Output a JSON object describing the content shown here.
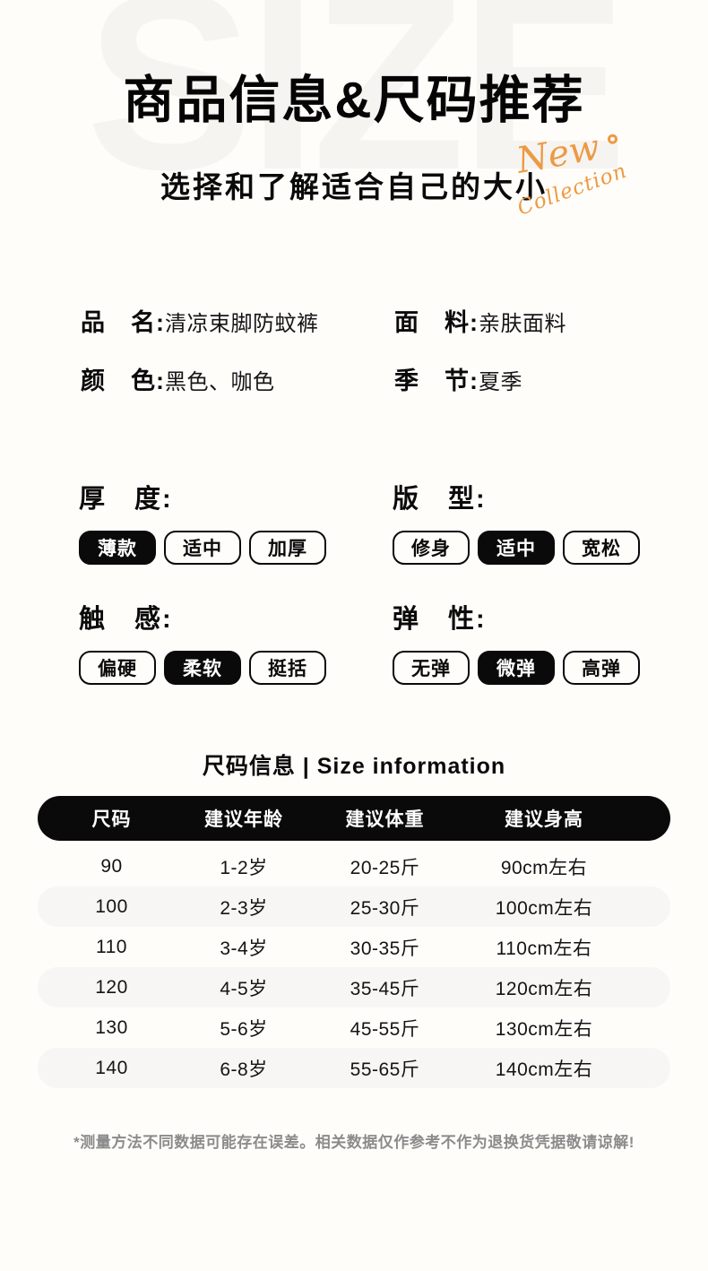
{
  "colors": {
    "accent_orange": "#EC9A43",
    "pill_black": "#0a0a0a",
    "row_stripe": "#f7f6f4",
    "watermark_gray": "#f6f4f1"
  },
  "header": {
    "watermark": "SIZE",
    "title": "商品信息&尺码推荐",
    "subtitle": "选择和了解适合自己的大小",
    "badge_line1": "New",
    "badge_line2": "Collection"
  },
  "product_info": {
    "fields": [
      {
        "label": "品　名:",
        "value": "清凉束脚防蚊裤"
      },
      {
        "label": "面　料:",
        "value": "亲肤面料"
      },
      {
        "label": "颜　色:",
        "value": "黑色、咖色"
      },
      {
        "label": "季　节:",
        "value": "夏季"
      }
    ]
  },
  "attributes": [
    {
      "label": "厚　度:",
      "options": [
        {
          "text": "薄款",
          "selected": true
        },
        {
          "text": "适中",
          "selected": false
        },
        {
          "text": "加厚",
          "selected": false
        }
      ]
    },
    {
      "label": "版　型:",
      "options": [
        {
          "text": "修身",
          "selected": false
        },
        {
          "text": "适中",
          "selected": true
        },
        {
          "text": "宽松",
          "selected": false
        }
      ]
    },
    {
      "label": "触　感:",
      "options": [
        {
          "text": "偏硬",
          "selected": false
        },
        {
          "text": "柔软",
          "selected": true
        },
        {
          "text": "挺括",
          "selected": false
        }
      ]
    },
    {
      "label": "弹　性:",
      "options": [
        {
          "text": "无弹",
          "selected": false
        },
        {
          "text": "微弹",
          "selected": true
        },
        {
          "text": "高弹",
          "selected": false
        }
      ]
    }
  ],
  "size_table": {
    "title": "尺码信息 | Size information",
    "columns": [
      "尺码",
      "建议年龄",
      "建议体重",
      "建议身高"
    ],
    "rows": [
      [
        "90",
        "1-2岁",
        "20-25斤",
        "90cm左右"
      ],
      [
        "100",
        "2-3岁",
        "25-30斤",
        "100cm左右"
      ],
      [
        "110",
        "3-4岁",
        "30-35斤",
        "110cm左右"
      ],
      [
        "120",
        "4-5岁",
        "35-45斤",
        "120cm左右"
      ],
      [
        "130",
        "5-6岁",
        "45-55斤",
        "130cm左右"
      ],
      [
        "140",
        "6-8岁",
        "55-65斤",
        "140cm左右"
      ]
    ]
  },
  "footer": {
    "note": "*测量方法不同数据可能存在误差。相关数据仅作参考不作为退换货凭据敬请谅解!"
  }
}
